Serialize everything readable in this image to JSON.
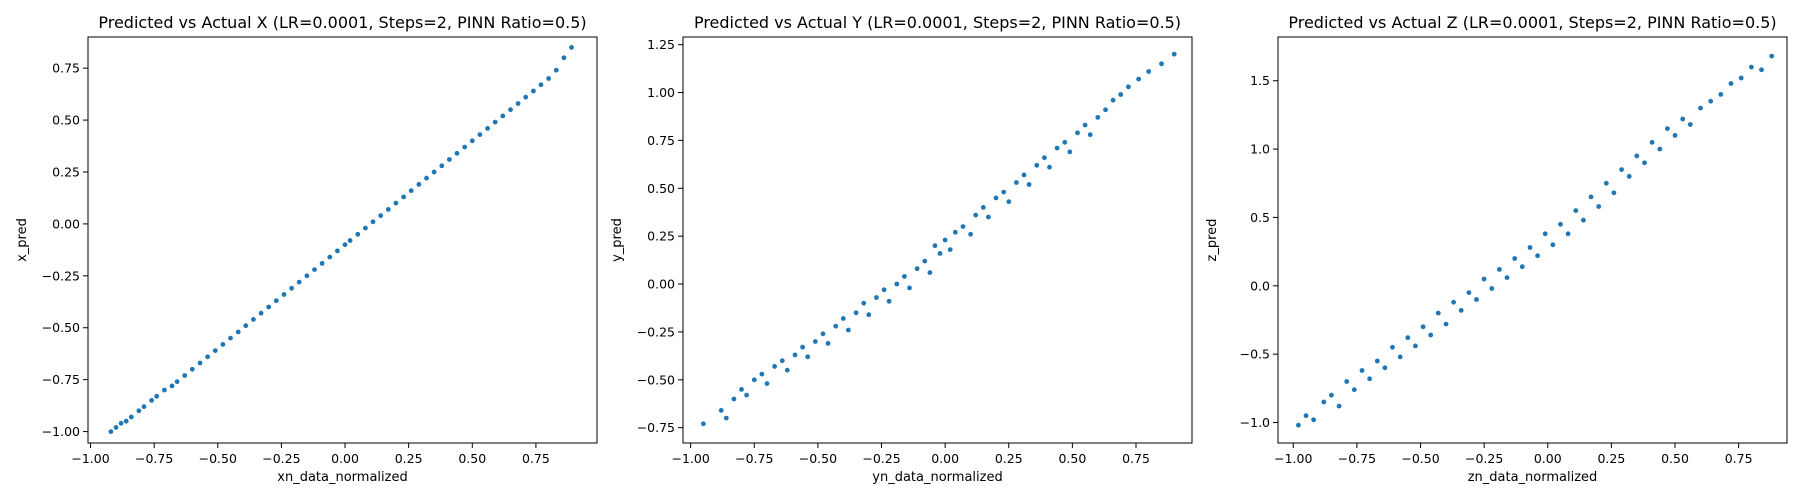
{
  "colors": {
    "marker": "#1f77b4",
    "axes": "#000000",
    "background": "#ffffff"
  },
  "chart_data": [
    {
      "type": "scatter",
      "title": "Predicted vs Actual X (LR=0.0001, Steps=2, PINN Ratio=0.5)",
      "xlabel": "xn_data_normalized",
      "ylabel": "x_pred",
      "xlim": [
        -1.01,
        0.99
      ],
      "ylim": [
        -1.055,
        0.9
      ],
      "xticks": [
        -1.0,
        -0.75,
        -0.5,
        -0.25,
        0.0,
        0.25,
        0.5,
        0.75
      ],
      "xtick_labels": [
        "−1.00",
        "−0.75",
        "−0.50",
        "−0.25",
        "0.00",
        "0.25",
        "0.50",
        "0.75"
      ],
      "yticks": [
        -1.0,
        -0.75,
        -0.5,
        -0.25,
        0.0,
        0.25,
        0.5,
        0.75
      ],
      "ytick_labels": [
        "−1.00",
        "−0.75",
        "−0.50",
        "−0.25",
        "0.00",
        "0.25",
        "0.50",
        "0.75"
      ],
      "grid": false,
      "series": [
        {
          "points": [
            [
              -0.92,
              -1.0
            ],
            [
              -0.9,
              -0.98
            ],
            [
              -0.88,
              -0.96
            ],
            [
              -0.86,
              -0.95
            ],
            [
              -0.84,
              -0.93
            ],
            [
              -0.81,
              -0.9
            ],
            [
              -0.79,
              -0.88
            ],
            [
              -0.76,
              -0.85
            ],
            [
              -0.74,
              -0.83
            ],
            [
              -0.71,
              -0.8
            ],
            [
              -0.68,
              -0.78
            ],
            [
              -0.66,
              -0.76
            ],
            [
              -0.63,
              -0.73
            ],
            [
              -0.6,
              -0.7
            ],
            [
              -0.57,
              -0.67
            ],
            [
              -0.54,
              -0.64
            ],
            [
              -0.51,
              -0.61
            ],
            [
              -0.48,
              -0.58
            ],
            [
              -0.45,
              -0.55
            ],
            [
              -0.42,
              -0.52
            ],
            [
              -0.39,
              -0.49
            ],
            [
              -0.36,
              -0.46
            ],
            [
              -0.33,
              -0.43
            ],
            [
              -0.3,
              -0.4
            ],
            [
              -0.27,
              -0.37
            ],
            [
              -0.24,
              -0.34
            ],
            [
              -0.21,
              -0.31
            ],
            [
              -0.18,
              -0.28
            ],
            [
              -0.15,
              -0.25
            ],
            [
              -0.12,
              -0.22
            ],
            [
              -0.09,
              -0.19
            ],
            [
              -0.06,
              -0.16
            ],
            [
              -0.03,
              -0.13
            ],
            [
              0.0,
              -0.1
            ],
            [
              0.02,
              -0.08
            ],
            [
              0.05,
              -0.05
            ],
            [
              0.08,
              -0.02
            ],
            [
              0.11,
              0.01
            ],
            [
              0.14,
              0.04
            ],
            [
              0.17,
              0.07
            ],
            [
              0.2,
              0.1
            ],
            [
              0.23,
              0.13
            ],
            [
              0.26,
              0.16
            ],
            [
              0.29,
              0.19
            ],
            [
              0.32,
              0.22
            ],
            [
              0.35,
              0.25
            ],
            [
              0.38,
              0.28
            ],
            [
              0.41,
              0.31
            ],
            [
              0.44,
              0.34
            ],
            [
              0.47,
              0.37
            ],
            [
              0.5,
              0.4
            ],
            [
              0.53,
              0.43
            ],
            [
              0.56,
              0.46
            ],
            [
              0.59,
              0.49
            ],
            [
              0.62,
              0.52
            ],
            [
              0.65,
              0.55
            ],
            [
              0.68,
              0.58
            ],
            [
              0.71,
              0.61
            ],
            [
              0.74,
              0.64
            ],
            [
              0.77,
              0.67
            ],
            [
              0.8,
              0.7
            ],
            [
              0.83,
              0.74
            ],
            [
              0.86,
              0.8
            ],
            [
              0.89,
              0.85
            ]
          ]
        }
      ]
    },
    {
      "type": "scatter",
      "title": "Predicted vs Actual Y (LR=0.0001, Steps=2, PINN Ratio=0.5)",
      "xlabel": "yn_data_normalized",
      "ylabel": "y_pred",
      "xlim": [
        -1.03,
        0.97
      ],
      "ylim": [
        -0.83,
        1.29
      ],
      "xticks": [
        -1.0,
        -0.75,
        -0.5,
        -0.25,
        0.0,
        0.25,
        0.5,
        0.75
      ],
      "xtick_labels": [
        "−1.00",
        "−0.75",
        "−0.50",
        "−0.25",
        "0.00",
        "0.25",
        "0.50",
        "0.75"
      ],
      "yticks": [
        -0.75,
        -0.5,
        -0.25,
        0.0,
        0.25,
        0.5,
        0.75,
        1.0,
        1.25
      ],
      "ytick_labels": [
        "−0.75",
        "−0.50",
        "−0.25",
        "0.00",
        "0.25",
        "0.50",
        "0.75",
        "1.00",
        "1.25"
      ],
      "grid": false,
      "series": [
        {
          "points": [
            [
              -0.95,
              -0.73
            ],
            [
              -0.88,
              -0.66
            ],
            [
              -0.86,
              -0.7
            ],
            [
              -0.83,
              -0.6
            ],
            [
              -0.8,
              -0.55
            ],
            [
              -0.78,
              -0.58
            ],
            [
              -0.75,
              -0.5
            ],
            [
              -0.72,
              -0.47
            ],
            [
              -0.7,
              -0.52
            ],
            [
              -0.67,
              -0.43
            ],
            [
              -0.64,
              -0.4
            ],
            [
              -0.62,
              -0.45
            ],
            [
              -0.59,
              -0.37
            ],
            [
              -0.56,
              -0.33
            ],
            [
              -0.54,
              -0.38
            ],
            [
              -0.51,
              -0.3
            ],
            [
              -0.48,
              -0.26
            ],
            [
              -0.46,
              -0.31
            ],
            [
              -0.43,
              -0.22
            ],
            [
              -0.4,
              -0.18
            ],
            [
              -0.38,
              -0.24
            ],
            [
              -0.35,
              -0.15
            ],
            [
              -0.32,
              -0.1
            ],
            [
              -0.3,
              -0.16
            ],
            [
              -0.27,
              -0.07
            ],
            [
              -0.24,
              -0.03
            ],
            [
              -0.22,
              -0.09
            ],
            [
              -0.19,
              0.0
            ],
            [
              -0.16,
              0.04
            ],
            [
              -0.14,
              -0.02
            ],
            [
              -0.11,
              0.08
            ],
            [
              -0.08,
              0.12
            ],
            [
              -0.06,
              0.06
            ],
            [
              -0.04,
              0.2
            ],
            [
              -0.02,
              0.16
            ],
            [
              0.0,
              0.23
            ],
            [
              0.02,
              0.18
            ],
            [
              0.04,
              0.27
            ],
            [
              0.07,
              0.3
            ],
            [
              0.1,
              0.26
            ],
            [
              0.12,
              0.36
            ],
            [
              0.15,
              0.4
            ],
            [
              0.17,
              0.35
            ],
            [
              0.2,
              0.45
            ],
            [
              0.23,
              0.48
            ],
            [
              0.25,
              0.43
            ],
            [
              0.28,
              0.53
            ],
            [
              0.31,
              0.57
            ],
            [
              0.33,
              0.52
            ],
            [
              0.36,
              0.62
            ],
            [
              0.39,
              0.66
            ],
            [
              0.41,
              0.61
            ],
            [
              0.44,
              0.71
            ],
            [
              0.47,
              0.74
            ],
            [
              0.49,
              0.69
            ],
            [
              0.52,
              0.79
            ],
            [
              0.55,
              0.83
            ],
            [
              0.57,
              0.78
            ],
            [
              0.6,
              0.87
            ],
            [
              0.63,
              0.91
            ],
            [
              0.66,
              0.96
            ],
            [
              0.69,
              0.99
            ],
            [
              0.72,
              1.03
            ],
            [
              0.76,
              1.07
            ],
            [
              0.8,
              1.11
            ],
            [
              0.85,
              1.15
            ],
            [
              0.9,
              1.2
            ]
          ]
        }
      ]
    },
    {
      "type": "scatter",
      "title": "Predicted vs Actual Z (LR=0.0001, Steps=2, PINN Ratio=0.5)",
      "xlabel": "zn_data_normalized",
      "ylabel": "z_pred",
      "xlim": [
        -1.06,
        0.94
      ],
      "ylim": [
        -1.15,
        1.82
      ],
      "xticks": [
        -1.0,
        -0.75,
        -0.5,
        -0.25,
        0.0,
        0.25,
        0.5,
        0.75
      ],
      "xtick_labels": [
        "−1.00",
        "−0.75",
        "−0.50",
        "−0.25",
        "0.00",
        "0.25",
        "0.50",
        "0.75"
      ],
      "yticks": [
        -1.0,
        -0.5,
        0.0,
        0.5,
        1.0,
        1.5
      ],
      "ytick_labels": [
        "−1.0",
        "−0.5",
        "0.0",
        "0.5",
        "1.0",
        "1.5"
      ],
      "grid": false,
      "series": [
        {
          "points": [
            [
              -0.98,
              -1.02
            ],
            [
              -0.95,
              -0.95
            ],
            [
              -0.92,
              -0.98
            ],
            [
              -0.88,
              -0.85
            ],
            [
              -0.85,
              -0.8
            ],
            [
              -0.82,
              -0.88
            ],
            [
              -0.79,
              -0.7
            ],
            [
              -0.76,
              -0.76
            ],
            [
              -0.73,
              -0.62
            ],
            [
              -0.7,
              -0.68
            ],
            [
              -0.67,
              -0.55
            ],
            [
              -0.64,
              -0.6
            ],
            [
              -0.61,
              -0.45
            ],
            [
              -0.58,
              -0.52
            ],
            [
              -0.55,
              -0.38
            ],
            [
              -0.52,
              -0.44
            ],
            [
              -0.49,
              -0.3
            ],
            [
              -0.46,
              -0.36
            ],
            [
              -0.43,
              -0.2
            ],
            [
              -0.4,
              -0.28
            ],
            [
              -0.37,
              -0.12
            ],
            [
              -0.34,
              -0.18
            ],
            [
              -0.31,
              -0.05
            ],
            [
              -0.28,
              -0.1
            ],
            [
              -0.25,
              0.05
            ],
            [
              -0.22,
              -0.02
            ],
            [
              -0.19,
              0.12
            ],
            [
              -0.16,
              0.06
            ],
            [
              -0.13,
              0.2
            ],
            [
              -0.1,
              0.14
            ],
            [
              -0.07,
              0.28
            ],
            [
              -0.04,
              0.22
            ],
            [
              -0.01,
              0.38
            ],
            [
              0.02,
              0.3
            ],
            [
              0.05,
              0.45
            ],
            [
              0.08,
              0.38
            ],
            [
              0.11,
              0.55
            ],
            [
              0.14,
              0.48
            ],
            [
              0.17,
              0.65
            ],
            [
              0.2,
              0.58
            ],
            [
              0.23,
              0.75
            ],
            [
              0.26,
              0.68
            ],
            [
              0.29,
              0.85
            ],
            [
              0.32,
              0.8
            ],
            [
              0.35,
              0.95
            ],
            [
              0.38,
              0.9
            ],
            [
              0.41,
              1.05
            ],
            [
              0.44,
              1.0
            ],
            [
              0.47,
              1.15
            ],
            [
              0.5,
              1.1
            ],
            [
              0.53,
              1.22
            ],
            [
              0.56,
              1.18
            ],
            [
              0.6,
              1.3
            ],
            [
              0.64,
              1.35
            ],
            [
              0.68,
              1.4
            ],
            [
              0.72,
              1.48
            ],
            [
              0.76,
              1.52
            ],
            [
              0.8,
              1.6
            ],
            [
              0.84,
              1.58
            ],
            [
              0.88,
              1.68
            ]
          ]
        }
      ]
    }
  ]
}
